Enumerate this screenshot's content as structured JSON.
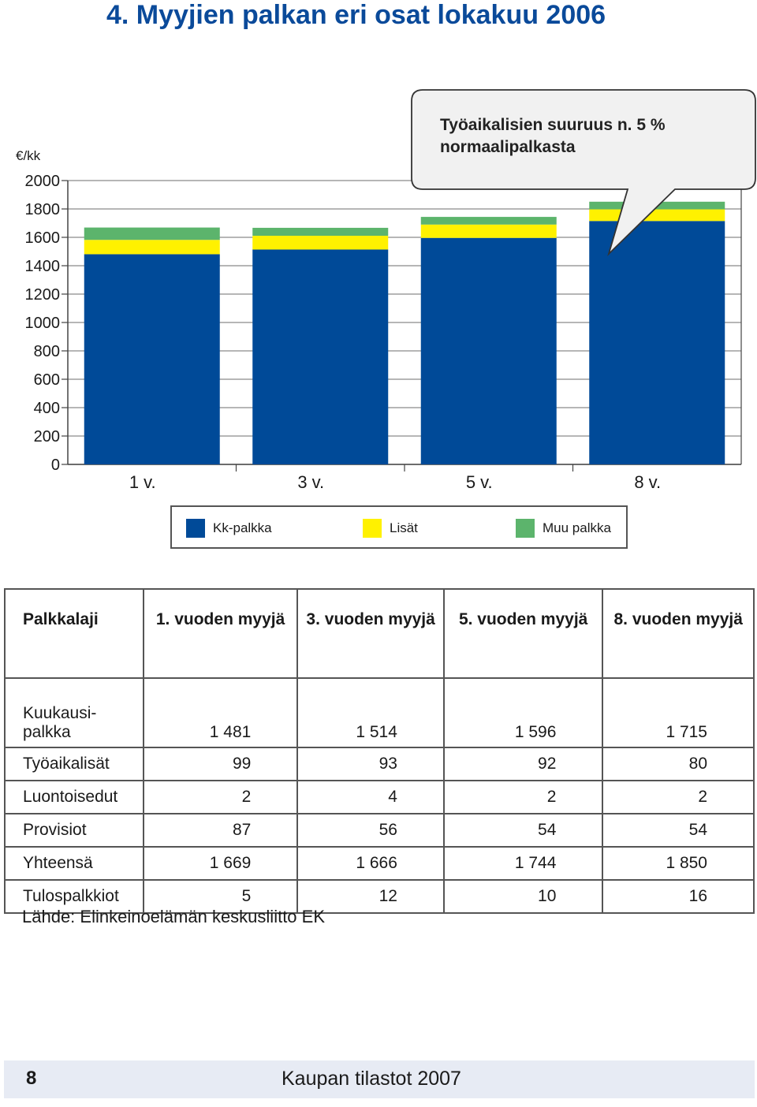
{
  "title": "4.  Myyjien palkan eri osat lokakuu 2006",
  "colors": {
    "kk": "#004a98",
    "lisat": "#fff100",
    "muu": "#5cb46c",
    "title": "#0a4a9a"
  },
  "chart_data": {
    "type": "bar",
    "stacked": true,
    "ylabel": "€/kk",
    "ylim": [
      0,
      2000
    ],
    "yticks": [
      "0",
      "200",
      "400",
      "600",
      "800",
      "1000",
      "1200",
      "1400",
      "1600",
      "1800",
      "2000"
    ],
    "categories": [
      "1 v.",
      "3 v.",
      "5 v.",
      "8 v."
    ],
    "series": [
      {
        "name": "Kk-palkka",
        "values": [
          1481,
          1514,
          1596,
          1715
        ]
      },
      {
        "name": "Lisät",
        "values": [
          101,
          97,
          94,
          82
        ]
      },
      {
        "name": "Muu palkka",
        "values": [
          87,
          56,
          54,
          54
        ]
      }
    ],
    "annotation": "Työaikalisien suuruus n. 5 % normaalipalkasta",
    "legend_position": "bottom"
  },
  "table": {
    "header": [
      "Palkkalaji",
      "1. vuoden myyjä",
      "3. vuoden myyjä",
      "5. vuoden myyjä",
      "8. vuoden myyjä"
    ],
    "rows": [
      [
        "Kuukausi-palkka",
        "1 481",
        "1 514",
        "1 596",
        "1 715"
      ],
      [
        "Työaikalisät",
        "99",
        "93",
        "92",
        "80"
      ],
      [
        "Luontoisedut",
        "2",
        "4",
        "2",
        "2"
      ],
      [
        "Provisiot",
        "87",
        "56",
        "54",
        "54"
      ],
      [
        "Yhteensä",
        "1 669",
        "1 666",
        "1 744",
        "1 850"
      ],
      [
        "Tulospalkkiot",
        "5",
        "12",
        "10",
        "16"
      ]
    ]
  },
  "source": "Lähde: Elinkeinoelämän keskusliitto EK",
  "footer": {
    "page": "8",
    "publication": "Kaupan tilastot 2007"
  }
}
